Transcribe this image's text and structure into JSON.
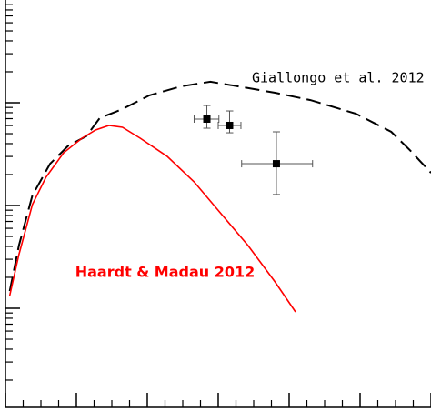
{
  "chart_data": {
    "type": "line",
    "log_y": true,
    "xlim": [
      0,
      6
    ],
    "ylim": [
      1e-14,
      1e-10
    ],
    "xticks": [
      0,
      1,
      2,
      3,
      4,
      5,
      6
    ],
    "xminorticks": [
      0.25,
      0.5,
      0.75,
      1.25,
      1.5,
      1.75,
      2.25,
      2.5,
      2.75,
      3.25,
      3.5,
      3.75,
      4.25,
      4.5,
      4.75,
      5.25,
      5.5,
      5.75
    ],
    "yticks": [
      1e-13,
      1e-12,
      1e-11
    ],
    "yminorticks": [
      2e-14,
      3e-14,
      4e-14,
      5e-14,
      6e-14,
      7e-14,
      8e-14,
      9e-14,
      2e-13,
      3e-13,
      4e-13,
      5e-13,
      6e-13,
      7e-13,
      8e-13,
      9e-13,
      2e-12,
      3e-12,
      4e-12,
      5e-12,
      6e-12,
      7e-12,
      8e-12,
      9e-12,
      2e-11,
      3e-11,
      4e-11,
      5e-11,
      6e-11,
      7e-11,
      8e-11,
      9e-11
    ],
    "series": [
      {
        "name": "Giallongo et al. 2012",
        "color": "#000000",
        "dash": true,
        "x": [
          0.06,
          0.19,
          0.38,
          0.63,
          0.89,
          1.14,
          1.33,
          1.65,
          2.03,
          2.47,
          2.89,
          3.29,
          3.8,
          4.3,
          4.94,
          5.44,
          5.7,
          6.0
        ],
        "values": [
          1.47e-13,
          4.08e-13,
          1.25e-12,
          2.55e-12,
          3.84e-12,
          4.71e-12,
          7.08e-12,
          8.67e-12,
          1.18e-11,
          1.44e-11,
          1.6e-11,
          1.44e-11,
          1.25e-11,
          1.06e-11,
          7.83e-12,
          5.21e-12,
          3.47e-12,
          2.08e-12
        ]
      },
      {
        "name": "Haardt & Madau 2012",
        "color": "#ff0000",
        "dash": false,
        "x": [
          0.06,
          0.19,
          0.38,
          0.57,
          0.82,
          1.08,
          1.27,
          1.46,
          1.65,
          1.9,
          2.28,
          2.66,
          3.04,
          3.42,
          3.8,
          4.09
        ],
        "values": [
          1.33e-13,
          3.33e-13,
          1.02e-12,
          1.88e-12,
          3.26e-12,
          4.52e-12,
          5.43e-12,
          6.01e-12,
          5.77e-12,
          4.52e-12,
          3.01e-12,
          1.7e-12,
          8.32e-13,
          4.08e-13,
          1.81e-13,
          9.22e-14
        ]
      }
    ],
    "points": {
      "color": "#000000",
      "x": [
        2.84,
        3.16,
        3.82
      ],
      "xlow": [
        2.66,
        3.0,
        3.33
      ],
      "xhigh": [
        3.01,
        3.32,
        4.33
      ],
      "values": [
        6.93e-12,
        6.01e-12,
        2.55e-12
      ],
      "ylow": [
        5.65e-12,
        5.1e-12,
        1.28e-12
      ],
      "yhigh": [
        9.4e-12,
        8.32e-12,
        5.21e-12
      ]
    },
    "annotations": [
      {
        "text": "Giallongo et al. 2012",
        "x": 4.69,
        "y": 1.73e-11,
        "color": "#000000"
      },
      {
        "text": "Haardt & Madau 2012",
        "x": 2.25,
        "y": 2.22e-13,
        "color": "#ff0000"
      }
    ]
  }
}
